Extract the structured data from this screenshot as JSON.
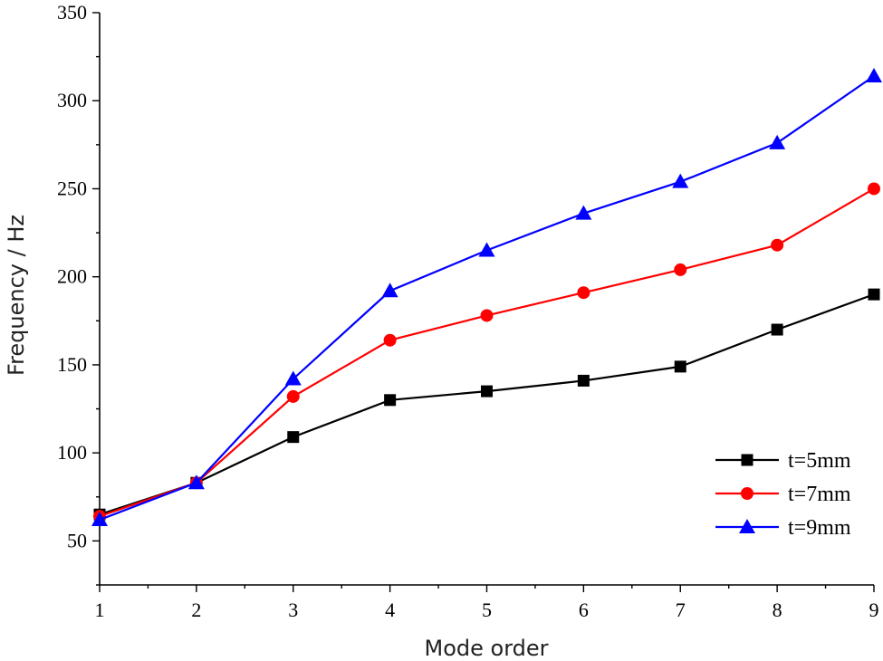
{
  "chart_data": {
    "type": "line",
    "title": "",
    "xlabel": "Mode order",
    "ylabel": "Frequency / Hz",
    "x": [
      1,
      2,
      3,
      4,
      5,
      6,
      7,
      8,
      9
    ],
    "xlim": [
      1,
      9
    ],
    "ylim": [
      25,
      350
    ],
    "xticks": [
      1,
      2,
      3,
      4,
      5,
      6,
      7,
      8,
      9
    ],
    "yticks": [
      50,
      100,
      150,
      200,
      250,
      300,
      350
    ],
    "grid": false,
    "legend_position": "bottom-right",
    "series": [
      {
        "name": "t=5mm",
        "color": "#000000",
        "marker": "square",
        "values": [
          65,
          83,
          109,
          130,
          135,
          141,
          149,
          170,
          190
        ]
      },
      {
        "name": "t=7mm",
        "color": "#ff0000",
        "marker": "circle",
        "values": [
          64,
          83,
          132,
          164,
          178,
          191,
          204,
          218,
          250
        ]
      },
      {
        "name": "t=9mm",
        "color": "#0000ff",
        "marker": "triangle",
        "values": [
          62,
          83,
          142,
          192,
          215,
          236,
          254,
          276,
          314
        ]
      }
    ]
  }
}
